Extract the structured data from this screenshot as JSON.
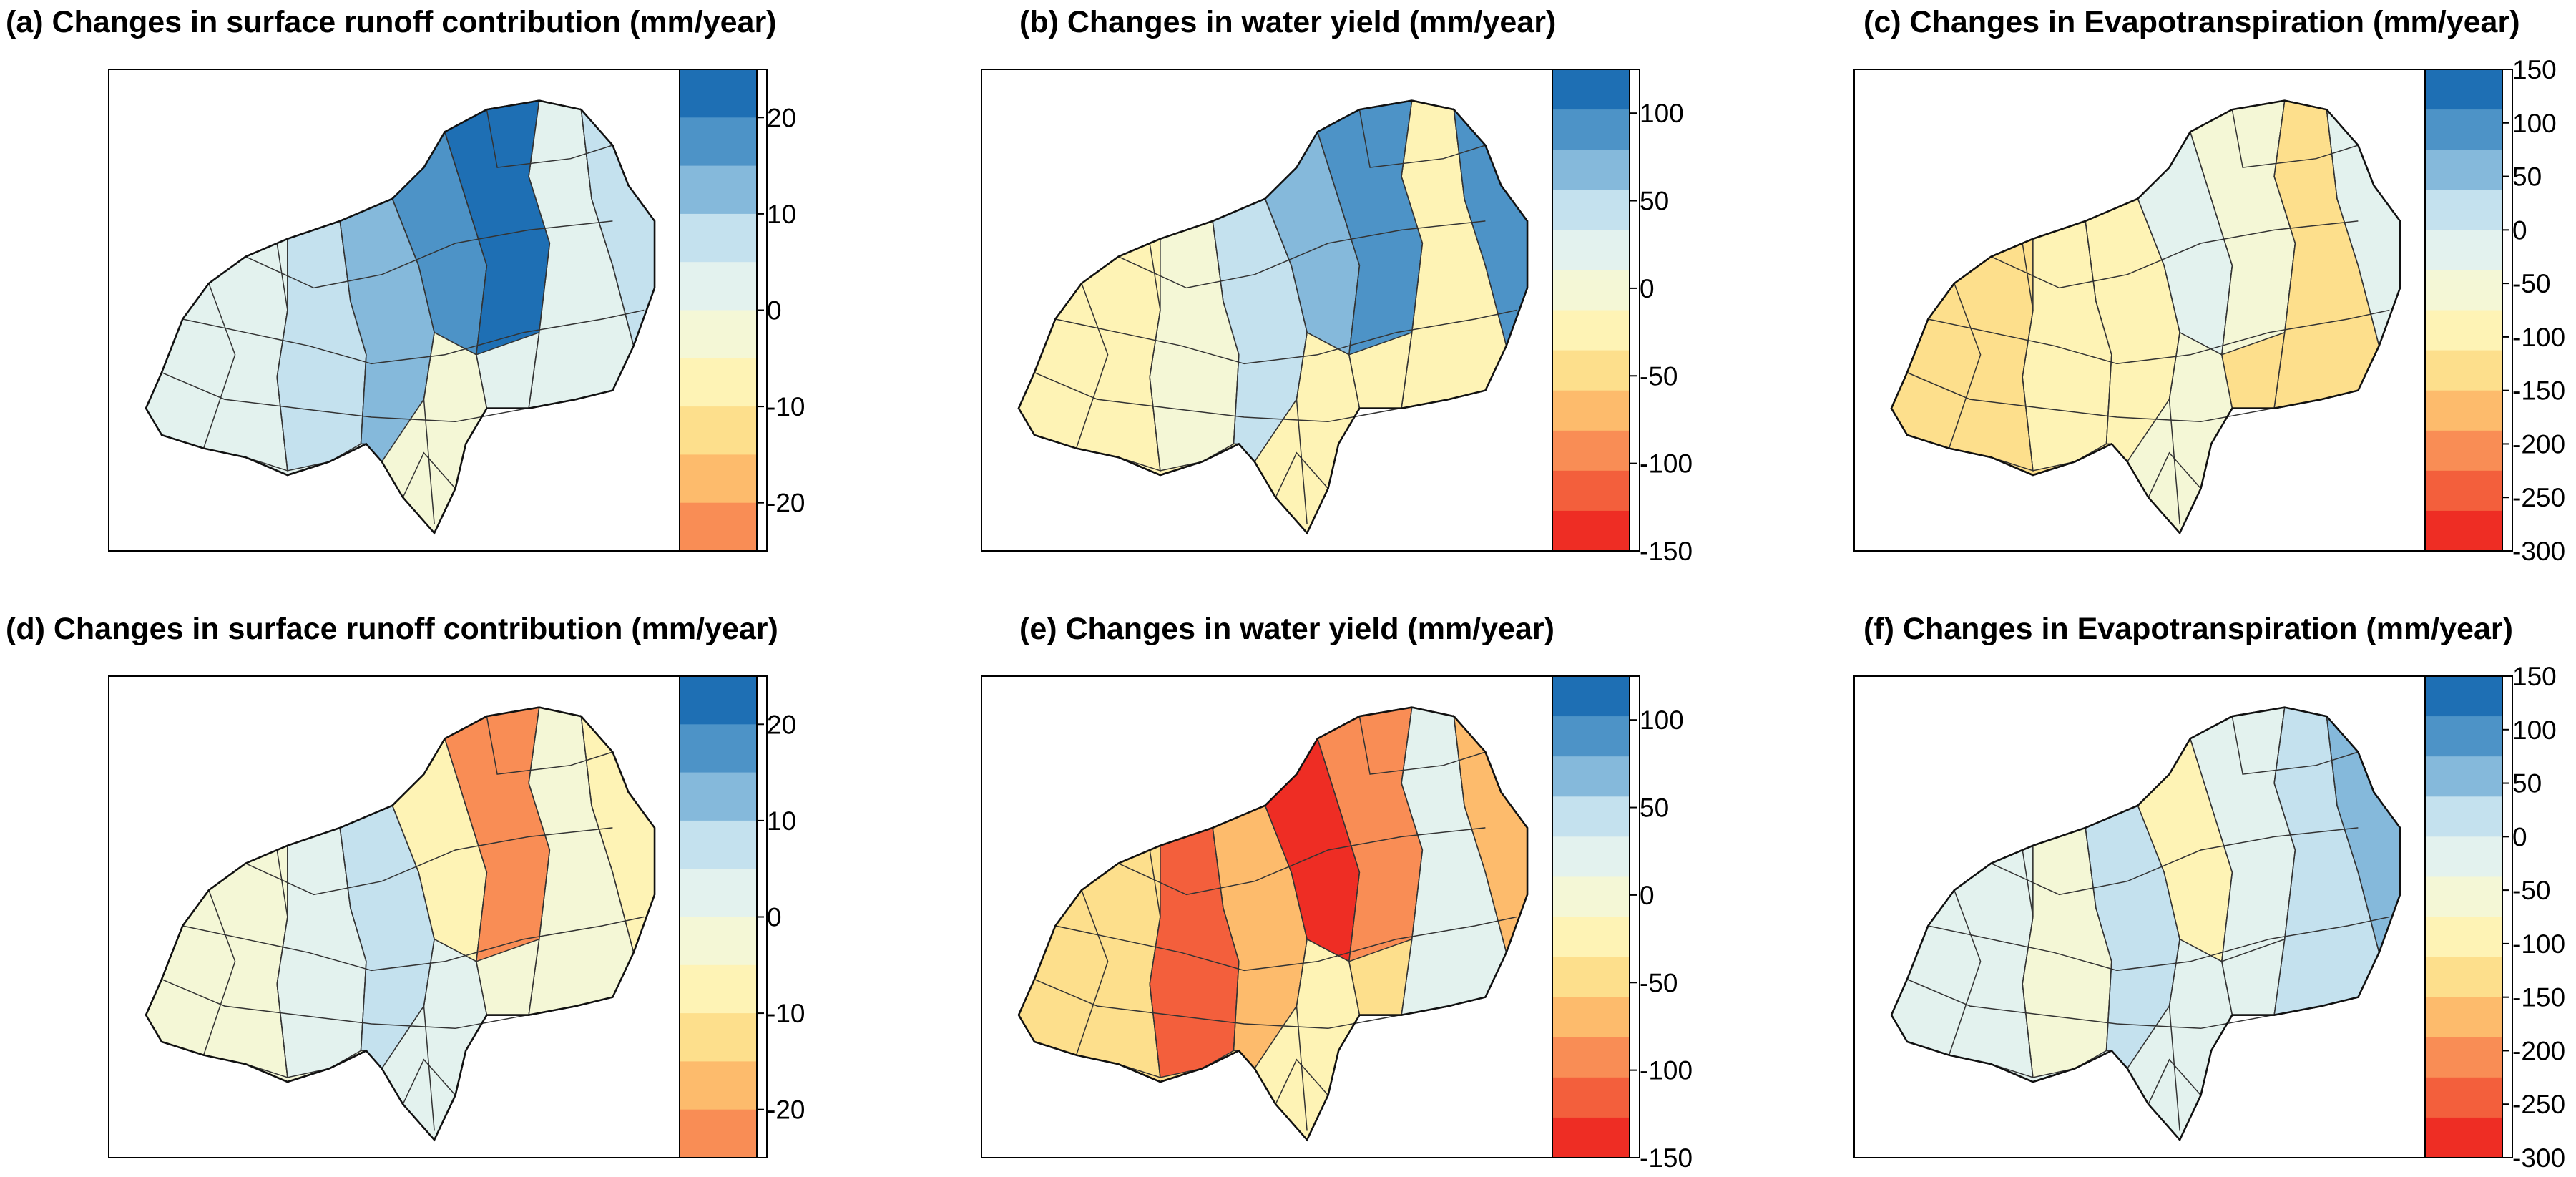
{
  "colors": {
    "blue_dark": "#1e6fb4",
    "blue": "#4d93c7",
    "blue_mid": "#85b9db",
    "blue_light": "#c4e1ee",
    "blue_pale": "#e3f2ee",
    "yellow_pale": "#f4f7d6",
    "yellow": "#fef3b5",
    "yellow_orange": "#fddf8c",
    "orange_light": "#fdbb6c",
    "orange": "#f98d55",
    "red_orange": "#f35f3c",
    "red": "#ee2d24"
  },
  "panels": [
    {
      "id": "a",
      "title": "(a) Changes in surface runoff contribution (mm/year)",
      "legend": {
        "colors": [
          "#1e6fb4",
          "#4d93c7",
          "#85b9db",
          "#c4e1ee",
          "#e3f2ee",
          "#f4f7d6",
          "#fef3b5",
          "#fddf8c",
          "#fdbb6c",
          "#f98d55"
        ],
        "ticks": [
          "20",
          "10",
          "0",
          "-10",
          "-20"
        ],
        "range": [
          -25,
          25
        ]
      },
      "fills": [
        "#e3f2ee",
        "#c4e1ee",
        "#85b9db",
        "#4d93c7",
        "#1e6fb4",
        "#e3f2ee",
        "#f4f7d6",
        "#c4e1ee"
      ]
    },
    {
      "id": "b",
      "title": "(b) Changes in water yield (mm/year)",
      "legend": {
        "colors": [
          "#1e6fb4",
          "#4d93c7",
          "#85b9db",
          "#c4e1ee",
          "#e3f2ee",
          "#f4f7d6",
          "#fef3b5",
          "#fddf8c",
          "#fdbb6c",
          "#f98d55",
          "#f35f3c",
          "#ee2d24"
        ],
        "ticks": [
          "100",
          "50",
          "0",
          "-50",
          "-100",
          "-150"
        ],
        "range": [
          -150,
          125
        ]
      },
      "fills": [
        "#fef3b5",
        "#f4f7d6",
        "#c4e1ee",
        "#85b9db",
        "#4d93c7",
        "#fef3b5",
        "#fef3b5",
        "#4d93c7"
      ]
    },
    {
      "id": "c",
      "title": "(c) Changes in Evapotranspiration (mm/year)",
      "legend": {
        "colors": [
          "#1e6fb4",
          "#4d93c7",
          "#85b9db",
          "#c4e1ee",
          "#e3f2ee",
          "#f4f7d6",
          "#fef3b5",
          "#fddf8c",
          "#fdbb6c",
          "#f98d55",
          "#f35f3c",
          "#ee2d24"
        ],
        "ticks": [
          "150",
          "100",
          "50",
          "0",
          "-50",
          "-100",
          "-150",
          "-200",
          "-250",
          "-300"
        ],
        "range": [
          -300,
          150
        ]
      },
      "fills": [
        "#fddf8c",
        "#fef3b5",
        "#fef3b5",
        "#e3f2ee",
        "#f4f7d6",
        "#fddf8c",
        "#f4f7d6",
        "#e3f2ee"
      ]
    },
    {
      "id": "d",
      "title": "(d) Changes in surface runoff contribution (mm/year)",
      "legend": {
        "colors": [
          "#1e6fb4",
          "#4d93c7",
          "#85b9db",
          "#c4e1ee",
          "#e3f2ee",
          "#f4f7d6",
          "#fef3b5",
          "#fddf8c",
          "#fdbb6c",
          "#f98d55"
        ],
        "ticks": [
          "20",
          "10",
          "0",
          "-10",
          "-20"
        ],
        "range": [
          -25,
          25
        ]
      },
      "fills": [
        "#f4f7d6",
        "#e3f2ee",
        "#c4e1ee",
        "#fef3b5",
        "#f98d55",
        "#f4f7d6",
        "#e3f2ee",
        "#fef3b5"
      ]
    },
    {
      "id": "e",
      "title": "(e) Changes in water yield (mm/year)",
      "legend": {
        "colors": [
          "#1e6fb4",
          "#4d93c7",
          "#85b9db",
          "#c4e1ee",
          "#e3f2ee",
          "#f4f7d6",
          "#fef3b5",
          "#fddf8c",
          "#fdbb6c",
          "#f98d55",
          "#f35f3c",
          "#ee2d24"
        ],
        "ticks": [
          "100",
          "50",
          "0",
          "-50",
          "-100",
          "-150"
        ],
        "range": [
          -150,
          125
        ]
      },
      "fills": [
        "#fddf8c",
        "#f35f3c",
        "#fdbb6c",
        "#ee2d24",
        "#f98d55",
        "#e3f2ee",
        "#fef3b5",
        "#fdbb6c"
      ]
    },
    {
      "id": "f",
      "title": "(f) Changes in Evapotranspiration (mm/year)",
      "legend": {
        "colors": [
          "#1e6fb4",
          "#4d93c7",
          "#85b9db",
          "#c4e1ee",
          "#e3f2ee",
          "#f4f7d6",
          "#fef3b5",
          "#fddf8c",
          "#fdbb6c",
          "#f98d55",
          "#f35f3c",
          "#ee2d24"
        ],
        "ticks": [
          "150",
          "100",
          "50",
          "0",
          "-50",
          "-100",
          "-150",
          "-200",
          "-250",
          "-300"
        ],
        "range": [
          -300,
          150
        ]
      },
      "fills": [
        "#e3f2ee",
        "#f4f7d6",
        "#c4e1ee",
        "#fef3b5",
        "#e3f2ee",
        "#c4e1ee",
        "#e3f2ee",
        "#85b9db"
      ]
    }
  ]
}
